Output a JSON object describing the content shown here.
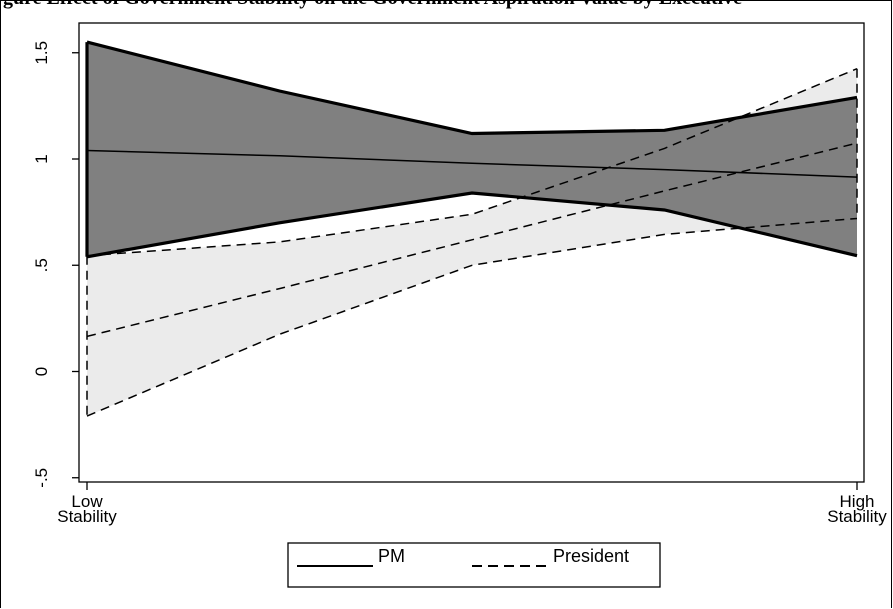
{
  "caption": "gure    Effect of Government Stability on the Government Aspiration Value by Executive",
  "chart_data": {
    "type": "line",
    "x": [
      0,
      1,
      2,
      3,
      4
    ],
    "x_tick_labels": [
      {
        "x": 0,
        "lines": [
          "Low",
          "Stability"
        ]
      },
      {
        "x": 4,
        "lines": [
          "High",
          "Stability"
        ]
      }
    ],
    "ylim": [
      -0.52,
      1.64
    ],
    "y_ticks": [
      {
        "value": -0.5,
        "label": "-.5"
      },
      {
        "value": 0,
        "label": "0"
      },
      {
        "value": 0.5,
        "label": ".5"
      },
      {
        "value": 1,
        "label": "1"
      },
      {
        "value": 1.5,
        "label": "1.5"
      }
    ],
    "grid": false,
    "legend_position": "bottom",
    "series": [
      {
        "name": "PM",
        "line_style": "solid",
        "band_fill": "#808080",
        "estimate": [
          1.04,
          1.015,
          0.98,
          0.95,
          0.915
        ],
        "upper": [
          1.55,
          1.32,
          1.12,
          1.135,
          1.29
        ],
        "lower": [
          0.54,
          0.7,
          0.84,
          0.76,
          0.545
        ]
      },
      {
        "name": "President",
        "line_style": "dashed",
        "band_fill": "#ebebeb",
        "estimate": [
          0.165,
          0.39,
          0.62,
          0.85,
          1.075
        ],
        "upper": [
          0.545,
          0.61,
          0.74,
          1.05,
          1.425
        ],
        "lower": [
          -0.21,
          0.175,
          0.5,
          0.645,
          0.72
        ]
      }
    ]
  }
}
